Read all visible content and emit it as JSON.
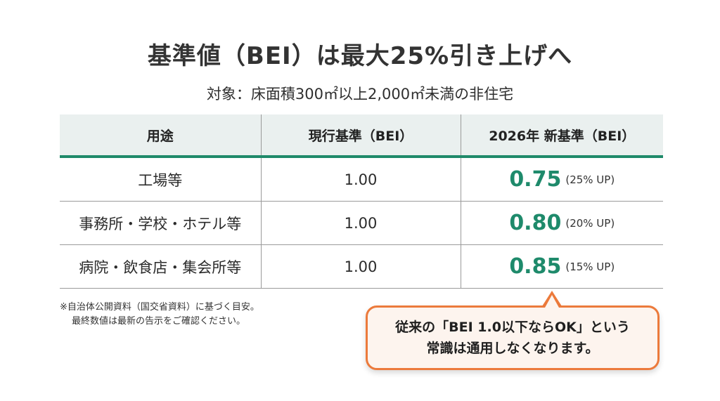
{
  "title": "基準値（BEI）は最大25%引き上げへ",
  "subtitle": "対象：床面積300㎡以上2,000㎡未満の非住宅",
  "table": {
    "headers": [
      "用途",
      "現行基準（BEI）",
      "2026年 新基準（BEI）"
    ],
    "rows": [
      {
        "use": "工場等",
        "current": "1.00",
        "new_value": "0.75",
        "new_up": "(25% UP)"
      },
      {
        "use": "事務所・学校・ホテル等",
        "current": "1.00",
        "new_value": "0.80",
        "new_up": "(20% UP)"
      },
      {
        "use": "病院・飲食店・集会所等",
        "current": "1.00",
        "new_value": "0.85",
        "new_up": "(15% UP)"
      }
    ]
  },
  "footnote": {
    "line1": "※自治体公開資料（国交省資料）に基づく目安。",
    "line2": "最終数値は最新の告示をご確認ください。"
  },
  "callout": {
    "line1": "従来の「BEI 1.0以下ならOK」という",
    "line2": "常識は通用しなくなります。"
  },
  "colors": {
    "accent_green": "#1e8a6b",
    "header_bg": "#eaf0ef",
    "callout_border": "#ec7a3b",
    "callout_bg": "#fdf4ee"
  }
}
